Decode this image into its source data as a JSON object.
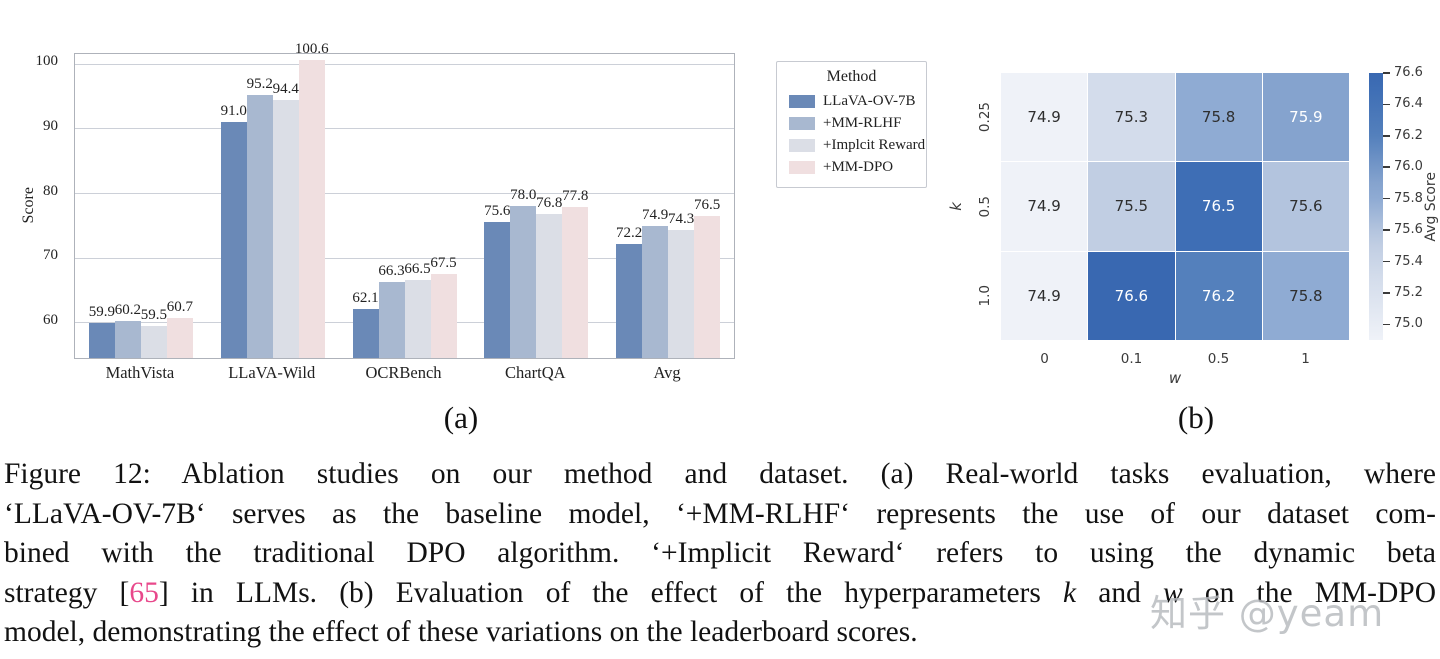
{
  "figure": {
    "panel_a_label": "(a)",
    "panel_b_label": "(b)"
  },
  "chart_data": [
    {
      "type": "bar",
      "title": "",
      "xlabel": "",
      "ylabel": "Score",
      "categories": [
        "MathVista",
        "LLaVA-Wild",
        "OCRBench",
        "ChartQA",
        "Avg"
      ],
      "series": [
        {
          "name": "LLaVA-OV-7B",
          "color": "#6a89b7",
          "values": [
            59.9,
            91.0,
            62.1,
            75.6,
            72.2
          ]
        },
        {
          "name": "+MM-RLHF",
          "color": "#a8b8d0",
          "values": [
            60.2,
            95.2,
            66.3,
            78.0,
            74.9
          ]
        },
        {
          "name": "+Implcit Reward",
          "color": "#dbdee6",
          "values": [
            59.5,
            94.4,
            66.5,
            76.8,
            74.3
          ]
        },
        {
          "name": "+MM-DPO",
          "color": "#f0dfe0",
          "values": [
            60.7,
            100.6,
            67.5,
            77.8,
            76.5
          ]
        }
      ],
      "legend_title": "Method",
      "legend_position": "outside-right",
      "yticks": [
        60,
        70,
        80,
        90,
        100
      ],
      "ylim": [
        54.5,
        101.5
      ],
      "grid": "horizontal"
    },
    {
      "type": "heatmap",
      "xlabel": "w",
      "ylabel": "k",
      "x_ticks": [
        "0",
        "0.1",
        "0.5",
        "1"
      ],
      "y_ticks": [
        "0.25",
        "0.5",
        "1.0"
      ],
      "values": [
        [
          74.9,
          75.3,
          75.8,
          75.9
        ],
        [
          74.9,
          75.5,
          76.5,
          75.6
        ],
        [
          74.9,
          76.6,
          76.2,
          75.8
        ]
      ],
      "colorbar_label": "Avg Score",
      "colorbar_ticks": [
        76.6,
        76.4,
        76.2,
        76.0,
        75.8,
        75.6,
        75.4,
        75.2,
        75.0
      ],
      "vmin": 74.9,
      "vmax": 76.6,
      "white_text_min": 75.9
    }
  ],
  "caption": {
    "cite_color": "#e8488b",
    "lines": [
      {
        "justify": true,
        "segments": [
          {
            "style": "normal",
            "text": "Figure 12:  Ablation studies on our method and dataset.  (a) Real-world tasks evaluation, where"
          }
        ]
      },
      {
        "justify": true,
        "segments": [
          {
            "style": "normal",
            "text": "‘LLaVA-OV-7B‘ serves as the baseline model, ‘+MM-RLHF‘ represents the use of our dataset com-"
          }
        ]
      },
      {
        "justify": true,
        "segments": [
          {
            "style": "normal",
            "text": "bined with the traditional DPO algorithm.  ‘+Implicit Reward‘ refers to using the dynamic beta"
          }
        ]
      },
      {
        "justify": true,
        "segments": [
          {
            "style": "normal",
            "text": "strategy ["
          },
          {
            "style": "cite",
            "text": "65"
          },
          {
            "style": "normal",
            "text": "] in LLMs. (b) Evaluation of the effect of the hyperparameters "
          },
          {
            "style": "math",
            "text": "k"
          },
          {
            "style": "normal",
            "text": " and "
          },
          {
            "style": "math",
            "text": "w"
          },
          {
            "style": "normal",
            "text": " on the MM-DPO"
          }
        ]
      },
      {
        "justify": false,
        "segments": [
          {
            "style": "normal",
            "text": "model, demonstrating the effect of these variations on the leaderboard scores."
          }
        ]
      }
    ]
  },
  "watermark": {
    "text": "知乎 @yeam"
  }
}
